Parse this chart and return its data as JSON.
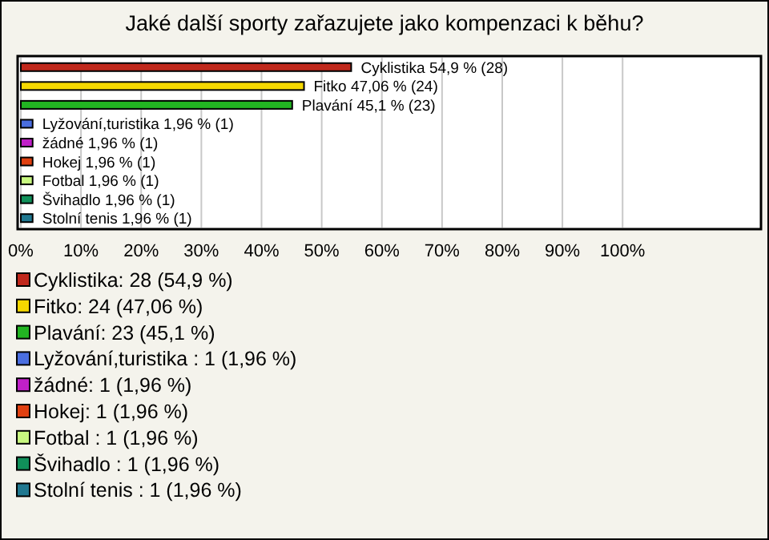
{
  "chart_data": {
    "type": "bar",
    "orientation": "horizontal",
    "title": "Jaké další sporty zařazujete jako kompenzaci k běhu?",
    "categories": [
      "Cyklistika",
      "Fitko",
      "Plavání",
      "Lyžování,turistika",
      "žádné",
      "Hokej",
      "Fotbal",
      "Švihadlo",
      "Stolní tenis"
    ],
    "values": [
      54.9,
      47.06,
      45.1,
      1.96,
      1.96,
      1.96,
      1.96,
      1.96,
      1.96
    ],
    "colors": [
      "#c0281c",
      "#f5d800",
      "#22b522",
      "#4a6ee0",
      "#c020c8",
      "#e04010",
      "#c8f880",
      "#10905a",
      "#207890"
    ],
    "value_labels": [
      "54,9 % (28)",
      "47,06 % (24)",
      "45,1 % (23)",
      "1,96 % (1)",
      "1,96 % (1)",
      "1,96 % (1)",
      "1,96 % (1)",
      "1,96 % (1)",
      "1,96 % (1)"
    ],
    "xlim": [
      0,
      123
    ],
    "xticks": [
      {
        "value": 0,
        "label": "0%"
      },
      {
        "value": 10,
        "label": "10%"
      },
      {
        "value": 20,
        "label": "20%"
      },
      {
        "value": 30,
        "label": "30%"
      },
      {
        "value": 40,
        "label": "40%"
      },
      {
        "value": 50,
        "label": "50%"
      },
      {
        "value": 60,
        "label": "60%"
      },
      {
        "value": 70,
        "label": "70%"
      },
      {
        "value": 80,
        "label": "80%"
      },
      {
        "value": 90,
        "label": "90%"
      },
      {
        "value": 100,
        "label": "100%"
      }
    ],
    "tick_labels": "x",
    "grid": "x",
    "annotations": [
      "Cyklistika: 28 (54,9 %)",
      "Fitko: 24 (47,06 %)",
      "Plavání: 23 (45,1 %)",
      "Lyžování,turistika : 1 (1,96 %)",
      "žádné: 1 (1,96 %)",
      "Hokej: 1 (1,96 %)",
      "Fotbal : 1 (1,96 %)",
      "Švihadlo : 1 (1,96 %)",
      "Stolní tenis : 1 (1,96 %)"
    ]
  }
}
